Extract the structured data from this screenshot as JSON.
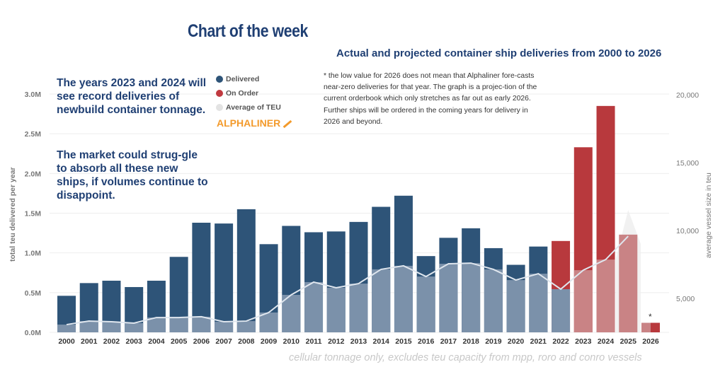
{
  "title": "Chart of the week",
  "subtitle": "Actual and projected container ship deliveries from 2000 to 2026",
  "callout": {
    "p1": "The years 2023 and 2024 will see record deliveries of newbuild container tonnage.",
    "p2": "The market could strug-gle to absorb all these new ships, if volumes continue to disappoint."
  },
  "note": "* the low value for 2026 does not mean that Alphaliner fore-casts near-zero deliveries for that year. The graph is a projec-tion of the current orderbook which only stretches as far out as early 2026. Further ships will be ordered in the coming years for delivery in 2026 and beyond.",
  "brand": "ALPHALINER",
  "footer": "cellular tonnage only, excludes teu capacity from mpp, roro and conro vessels",
  "colors": {
    "delivered": "#2e5478",
    "delivered_light": "#7b91aa",
    "on_order": "#b8393d",
    "on_order_light": "#c98385",
    "average": "#e6e6e6",
    "title": "#1f3f73",
    "brand": "#f39a2b"
  },
  "chart_data": {
    "type": "bar",
    "categories": [
      "2000",
      "2001",
      "2002",
      "2003",
      "2004",
      "2005",
      "2006",
      "2007",
      "2008",
      "2009",
      "2010",
      "2011",
      "2012",
      "2013",
      "2014",
      "2015",
      "2016",
      "2017",
      "2018",
      "2019",
      "2020",
      "2021",
      "2022",
      "2023",
      "2024",
      "2025",
      "2026"
    ],
    "legend": [
      "Delivered",
      "On Order",
      "Average of TEU"
    ],
    "legend_position": "top-left",
    "series": [
      {
        "name": "Delivered",
        "axis": "left",
        "values": [
          0.46,
          0.62,
          0.65,
          0.57,
          0.65,
          0.95,
          1.38,
          1.37,
          1.55,
          1.11,
          1.34,
          1.26,
          1.27,
          1.39,
          1.58,
          1.72,
          0.96,
          1.19,
          1.31,
          1.06,
          0.85,
          1.08,
          null,
          null,
          null,
          null,
          null
        ]
      },
      {
        "name": "On Order",
        "axis": "left",
        "values": [
          null,
          null,
          null,
          null,
          null,
          null,
          null,
          null,
          null,
          null,
          null,
          null,
          null,
          null,
          null,
          null,
          null,
          null,
          null,
          null,
          null,
          null,
          1.15,
          2.33,
          2.85,
          1.23,
          0.12
        ]
      },
      {
        "name": "Average of TEU",
        "axis": "right",
        "type": "line",
        "values": [
          3070,
          3330,
          3280,
          3180,
          3590,
          3590,
          3650,
          3280,
          3330,
          3960,
          5260,
          6200,
          5780,
          6090,
          7140,
          7400,
          6610,
          7550,
          7600,
          7140,
          6350,
          6820,
          5680,
          7080,
          7860,
          9580,
          null
        ]
      }
    ],
    "ylabel": "total teu delivered per year",
    "y2label": "average vessel size in teu",
    "yticks": [
      "0.0M",
      "0.5M",
      "1.0M",
      "1.5M",
      "2.0M",
      "2.5M",
      "3.0M"
    ],
    "y2ticks": [
      "5,000",
      "10,000",
      "15,000",
      "20,000"
    ],
    "ylim": [
      0,
      3.0
    ],
    "y2lim": [
      2500,
      20000
    ],
    "annotation_2026": "*",
    "grid": true
  }
}
